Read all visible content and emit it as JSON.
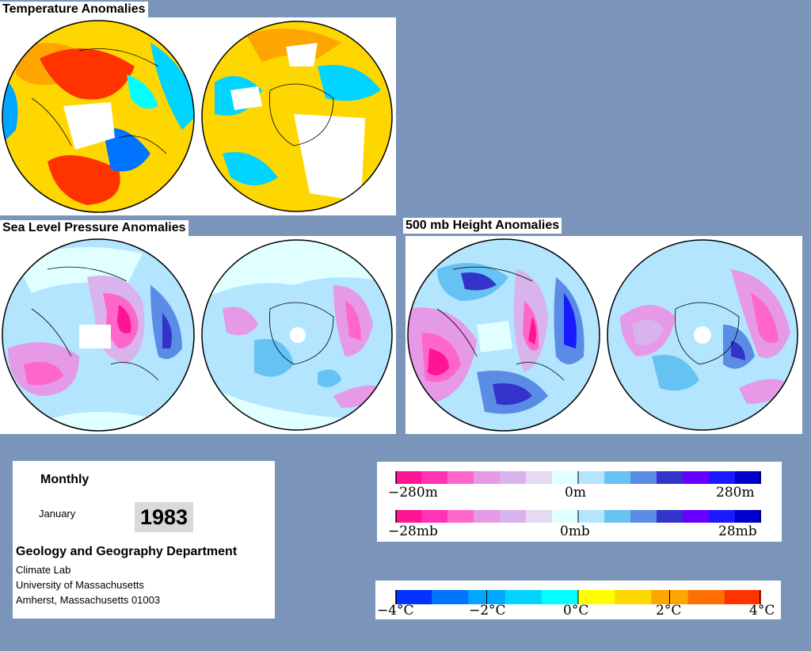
{
  "titles": {
    "temperature": "Temperature Anomalies",
    "slp": "Sea Level Pressure Anomalies",
    "height": "500 mb Height Anomalies"
  },
  "info": {
    "period": "Monthly",
    "month": "January",
    "year": "1983",
    "department": "Geology and Geography Department",
    "lab": "Climate Lab",
    "university": "University of Massachusetts",
    "address": "Amherst, Massachusetts 01003"
  },
  "legends": {
    "height": {
      "min": "−280m",
      "mid": "0m",
      "max": "280m"
    },
    "pressure": {
      "min": "−28mb",
      "mid": "0mb",
      "max": "28mb"
    },
    "temperature": {
      "t1": "−4°C",
      "t2": "−2°C",
      "t3": "0°C",
      "t4": "2°C",
      "t5": "4°C"
    }
  },
  "colors": {
    "background": "#7b94b9",
    "anomaly_scale": [
      "#ff1493",
      "#ff33b4",
      "#ff66cc",
      "#e699e6",
      "#d9b3ec",
      "#e6d9f2",
      "#e0ffff",
      "#b3e5ff",
      "#66c2f2",
      "#5a8ce6",
      "#3333cc",
      "#6600ff",
      "#1a1aff",
      "#0000cc"
    ],
    "temperature_scale": [
      "#0033ff",
      "#0073ff",
      "#00a6ff",
      "#00d4ff",
      "#00ffff",
      "#ffff00",
      "#ffd700",
      "#ffa500",
      "#ff7000",
      "#ff3300"
    ]
  }
}
